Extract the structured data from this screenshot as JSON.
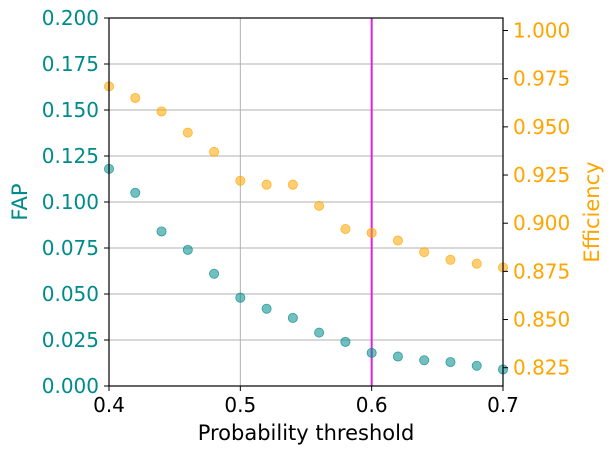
{
  "chart_data": {
    "type": "scatter",
    "title": "",
    "xlabel": "Probability threshold",
    "ylabel_left": "FAP",
    "ylabel_right": "Efficiency",
    "xlim": [
      0.4,
      0.7
    ],
    "ylim_left": [
      0.0,
      0.2
    ],
    "ylim_right": [
      0.8155,
      1.0065
    ],
    "grid": true,
    "x_ticks": [
      0.4,
      0.5,
      0.6,
      0.7
    ],
    "x_tick_labels": [
      "0.4",
      "0.5",
      "0.6",
      "0.7"
    ],
    "y_left_ticks": [
      0.0,
      0.025,
      0.05,
      0.075,
      0.1,
      0.125,
      0.15,
      0.175,
      0.2
    ],
    "y_left_tick_labels": [
      "0.000",
      "0.025",
      "0.050",
      "0.075",
      "0.100",
      "0.125",
      "0.150",
      "0.175",
      "0.200"
    ],
    "y_right_ticks": [
      0.825,
      0.85,
      0.875,
      0.9,
      0.925,
      0.95,
      0.975,
      1.0
    ],
    "y_right_tick_labels": [
      "0.825",
      "0.850",
      "0.875",
      "0.900",
      "0.925",
      "0.950",
      "0.975",
      "1.000"
    ],
    "vline": {
      "x": 0.6,
      "color": "#dd22dd"
    },
    "colors": {
      "left_axis": "#008b8b",
      "right_axis": "#ffa500"
    },
    "series": [
      {
        "name": "FAP",
        "axis": "left",
        "color": "#008b8b",
        "x": [
          0.4,
          0.42,
          0.44,
          0.46,
          0.48,
          0.5,
          0.52,
          0.54,
          0.56,
          0.58,
          0.6,
          0.62,
          0.64,
          0.66,
          0.68,
          0.7
        ],
        "values": [
          0.118,
          0.105,
          0.084,
          0.074,
          0.061,
          0.048,
          0.042,
          0.037,
          0.029,
          0.024,
          0.018,
          0.016,
          0.014,
          0.013,
          0.011,
          0.009
        ]
      },
      {
        "name": "Efficiency",
        "axis": "right",
        "color": "#ffa500",
        "x": [
          0.4,
          0.42,
          0.44,
          0.46,
          0.48,
          0.5,
          0.52,
          0.54,
          0.56,
          0.58,
          0.6,
          0.62,
          0.64,
          0.66,
          0.68,
          0.7
        ],
        "values": [
          0.971,
          0.965,
          0.958,
          0.947,
          0.937,
          0.922,
          0.92,
          0.92,
          0.909,
          0.897,
          0.895,
          0.891,
          0.885,
          0.881,
          0.879,
          0.877
        ]
      }
    ]
  }
}
